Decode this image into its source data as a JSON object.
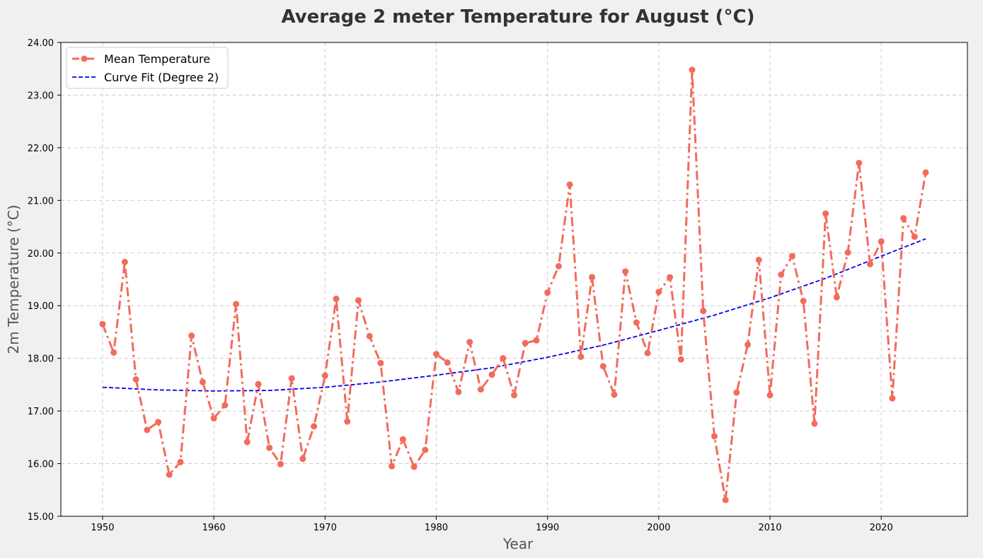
{
  "chart_data": {
    "type": "line",
    "title": "Average 2 meter Temperature for August (°C)",
    "xlabel": "Year",
    "ylabel": "2m Temperature (°C)",
    "xlim": [
      1946.25,
      2027.75
    ],
    "ylim": [
      15.0,
      24.0
    ],
    "xticks": [
      1950,
      1960,
      1970,
      1980,
      1990,
      2000,
      2010,
      2020
    ],
    "yticks": [
      "15.00",
      "16.00",
      "17.00",
      "18.00",
      "19.00",
      "20.00",
      "21.00",
      "22.00",
      "23.00",
      "24.00"
    ],
    "grid": true,
    "legend_position": "top-left",
    "series": [
      {
        "name": "Mean Temperature",
        "color": "#f26b5b",
        "style": "dash-dot with circle markers",
        "x": [
          1950,
          1951,
          1952,
          1953,
          1954,
          1955,
          1956,
          1957,
          1958,
          1959,
          1960,
          1961,
          1962,
          1963,
          1964,
          1965,
          1966,
          1967,
          1968,
          1969,
          1970,
          1971,
          1972,
          1973,
          1974,
          1975,
          1976,
          1977,
          1978,
          1979,
          1980,
          1981,
          1982,
          1983,
          1984,
          1985,
          1986,
          1987,
          1988,
          1989,
          1990,
          1991,
          1992,
          1993,
          1994,
          1995,
          1996,
          1997,
          1998,
          1999,
          2000,
          2001,
          2002,
          2003,
          2004,
          2005,
          2006,
          2007,
          2008,
          2009,
          2010,
          2011,
          2012,
          2013,
          2014,
          2015,
          2016,
          2017,
          2018,
          2019,
          2020,
          2021,
          2022,
          2023,
          2024
        ],
        "y": [
          18.65,
          18.11,
          19.83,
          17.6,
          16.64,
          16.79,
          15.79,
          16.03,
          18.43,
          17.55,
          16.86,
          17.11,
          19.03,
          16.41,
          17.51,
          16.3,
          15.99,
          17.62,
          16.09,
          16.71,
          17.67,
          19.13,
          16.8,
          19.1,
          18.42,
          17.91,
          15.95,
          16.46,
          15.94,
          16.26,
          18.08,
          17.92,
          17.36,
          18.31,
          17.41,
          17.69,
          18.0,
          17.3,
          18.29,
          18.34,
          19.25,
          19.75,
          21.3,
          18.03,
          19.54,
          17.85,
          17.31,
          19.65,
          18.68,
          18.1,
          19.26,
          19.54,
          17.98,
          23.48,
          18.9,
          16.52,
          15.31,
          17.35,
          18.26,
          19.87,
          17.3,
          19.59,
          19.94,
          19.09,
          16.76,
          20.75,
          19.16,
          20.01,
          21.71,
          19.79,
          20.22,
          17.24,
          20.66,
          20.31,
          21.53
        ]
      },
      {
        "name": "Curve Fit (Degree 2)",
        "color": "#0000ee",
        "style": "dashed",
        "x": [
          1950,
          1955,
          1960,
          1965,
          1970,
          1975,
          1980,
          1985,
          1990,
          1995,
          2000,
          2005,
          2010,
          2015,
          2020,
          2024
        ],
        "y": [
          17.45,
          17.4,
          17.38,
          17.39,
          17.45,
          17.55,
          17.68,
          17.82,
          18.02,
          18.25,
          18.53,
          18.82,
          19.15,
          19.52,
          19.94,
          20.27
        ]
      }
    ]
  }
}
